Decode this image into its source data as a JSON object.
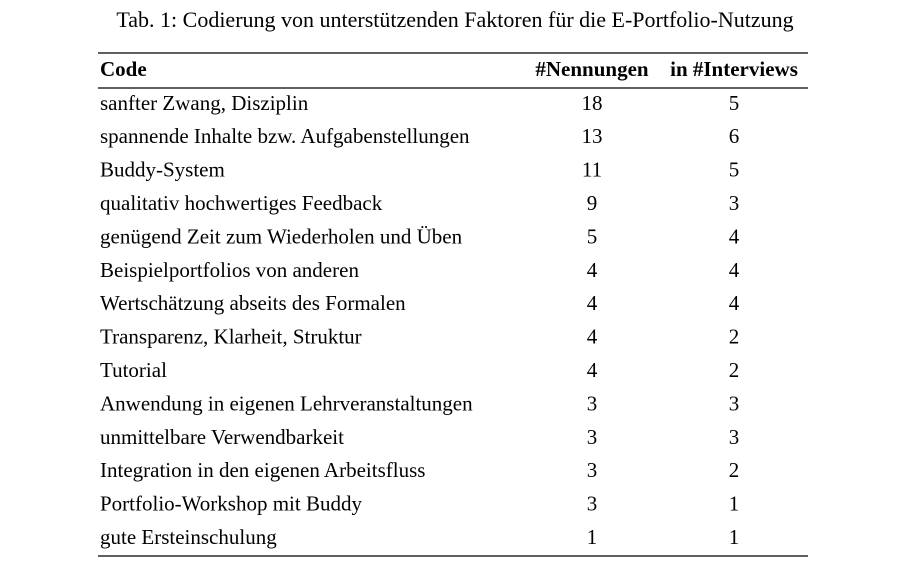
{
  "caption": "Tab. 1: Codierung von unterstützenden Faktoren für die E-Portfolio-Nutzung",
  "table": {
    "headers": [
      "Code",
      "#Nennungen",
      "in #Interviews"
    ],
    "rows": [
      [
        "sanfter Zwang, Disziplin",
        18,
        5
      ],
      [
        "spannende Inhalte bzw. Aufgabenstellungen",
        13,
        6
      ],
      [
        "Buddy-System",
        11,
        5
      ],
      [
        "qualitativ hochwertiges Feedback",
        9,
        3
      ],
      [
        "genügend Zeit zum Wiederholen und Üben",
        5,
        4
      ],
      [
        "Beispielportfolios von anderen",
        4,
        4
      ],
      [
        "Wertschätzung abseits des Formalen",
        4,
        4
      ],
      [
        "Transparenz, Klarheit, Struktur",
        4,
        2
      ],
      [
        "Tutorial",
        4,
        2
      ],
      [
        "Anwendung in eigenen Lehrveranstaltungen",
        3,
        3
      ],
      [
        "unmittelbare Verwendbarkeit",
        3,
        3
      ],
      [
        "Integration in den eigenen Arbeitsfluss",
        3,
        2
      ],
      [
        "Portfolio-Workshop mit Buddy",
        3,
        1
      ],
      [
        "gute Ersteinschulung",
        1,
        1
      ]
    ]
  }
}
